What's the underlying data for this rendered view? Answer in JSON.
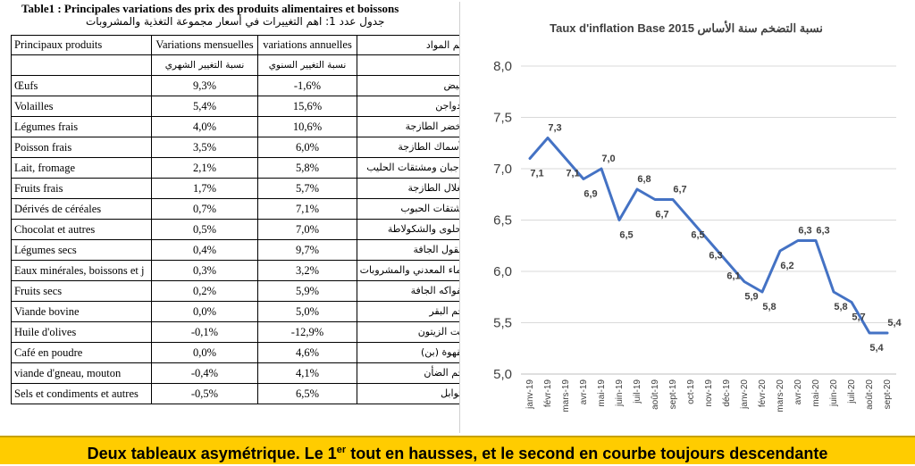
{
  "table": {
    "title": "Table1 : Principales variations des prix des produits alimentaires et boissons",
    "subtitle_ar": "جدول عدد 1: اهم التغييرات في أسعار مجموعة التغذية والمشروبات",
    "headers": [
      "Principaux produits",
      "Variations mensuelles",
      "variations annuelles",
      "أهم المواد"
    ],
    "subheaders": [
      "",
      "نسبة التغيير الشهري",
      "نسبة التغيير السنوي",
      ""
    ],
    "rows": [
      {
        "product": "Œufs",
        "monthly": "9,3%",
        "annual": "-1,6%",
        "ar": "البيض"
      },
      {
        "product": "Volailles",
        "monthly": "5,4%",
        "annual": "15,6%",
        "ar": "الدواجن"
      },
      {
        "product": "Légumes frais",
        "monthly": "4,0%",
        "annual": "10,6%",
        "ar": "الخضر الطازجة"
      },
      {
        "product": "Poisson frais",
        "monthly": "3,5%",
        "annual": "6,0%",
        "ar": "الأسماك الطازجة"
      },
      {
        "product": "Lait, fromage",
        "monthly": "2,1%",
        "annual": "5,8%",
        "ar": "الاجبان ومشتقات الحليب"
      },
      {
        "product": "Fruits frais",
        "monthly": "1,7%",
        "annual": "5,7%",
        "ar": "الغلال الطازجة"
      },
      {
        "product": "Dérivés de céréales",
        "monthly": "0,7%",
        "annual": "7,1%",
        "ar": "مشتقات الحبوب"
      },
      {
        "product": "Chocolat et autres",
        "monthly": "0,5%",
        "annual": "7,0%",
        "ar": "الحلوى والشكولاطة"
      },
      {
        "product": "Légumes secs",
        "monthly": "0,4%",
        "annual": "9,7%",
        "ar": "البقول الجافة"
      },
      {
        "product": "Eaux minérales, boissons et j",
        "monthly": "0,3%",
        "annual": "3,2%",
        "ar": "الماء المعدني والمشروبات ال"
      },
      {
        "product": "Fruits secs",
        "monthly": "0,2%",
        "annual": "5,9%",
        "ar": "الفواكه الجافة"
      },
      {
        "product": "Viande bovine",
        "monthly": "0,0%",
        "annual": "5,0%",
        "ar": "لحم البقر"
      },
      {
        "product": "Huile d'olives",
        "monthly": "-0,1%",
        "annual": "-12,9%",
        "ar": "زيت الزيتون"
      },
      {
        "product": "Café en poudre",
        "monthly": "0,0%",
        "annual": "4,6%",
        "ar": "القهوة (بن)"
      },
      {
        "product": "viande d'gneau, mouton",
        "monthly": "-0,4%",
        "annual": "4,1%",
        "ar": "لحم الضأن"
      },
      {
        "product": "Sels et condiments et autres",
        "monthly": "-0,5%",
        "annual": "6,5%",
        "ar": "التوابل"
      }
    ]
  },
  "chart_data": {
    "type": "line",
    "title": "Taux d'inflation Base 2015 نسبة التضخم سنة الأساس",
    "x": [
      "janv-19",
      "févr-19",
      "mars-19",
      "avr-19",
      "mai-19",
      "juin-19",
      "juil-19",
      "août-19",
      "sept-19",
      "oct-19",
      "nov-19",
      "déc-19",
      "janv-20",
      "févr-20",
      "mars-20",
      "avr-20",
      "mai-20",
      "juin-20",
      "juil-20",
      "août-20",
      "sept-20"
    ],
    "series": [
      {
        "values": [
          7.1,
          7.3,
          7.1,
          6.9,
          7.0,
          6.5,
          6.8,
          6.7,
          6.7,
          6.5,
          6.3,
          6.1,
          5.9,
          5.8,
          6.2,
          6.3,
          6.3,
          5.8,
          5.7,
          5.4,
          5.4
        ]
      }
    ],
    "data_labels": [
      "7,1",
      "7,3",
      "7,1",
      "6,9",
      "7,0",
      "6,5",
      "6,8",
      "6,7",
      "6,7",
      "6,5",
      "6,3",
      "6,1",
      "5,9",
      "5,8",
      "6,2",
      "6,3",
      "6,3",
      "5,8",
      "5,7",
      "5,4",
      "5,4"
    ],
    "yticks": [
      "5,0",
      "5,5",
      "6,0",
      "6,5",
      "7,0",
      "7,5",
      "8,0"
    ],
    "ylim": [
      5.0,
      8.0
    ],
    "grid": true,
    "line_color": "#4472c4"
  },
  "banner": {
    "text_before": "Deux tableaux asymétrique. Le 1",
    "sup": "er",
    "text_after": " tout en hausses, et le second en courbe toujours descendante"
  }
}
